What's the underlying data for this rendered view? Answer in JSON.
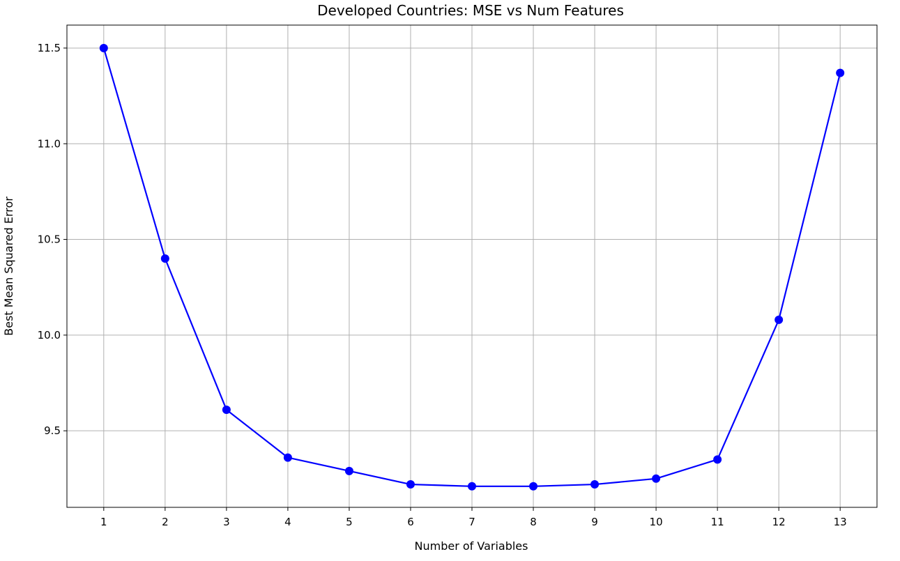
{
  "chart_data": {
    "type": "line",
    "title": "Developed Countries: MSE vs Num Features",
    "xlabel": "Number of Variables",
    "ylabel": "Best Mean Squared Error",
    "x": [
      1,
      2,
      3,
      4,
      5,
      6,
      7,
      8,
      9,
      10,
      11,
      12,
      13
    ],
    "series": [
      {
        "values": [
          11.5,
          10.4,
          9.61,
          9.36,
          9.29,
          9.22,
          9.21,
          9.21,
          9.22,
          9.25,
          9.35,
          10.08,
          11.37
        ],
        "color": "#0000ff",
        "marker": "circle"
      }
    ],
    "xticks": [
      "1",
      "2",
      "3",
      "4",
      "5",
      "6",
      "7",
      "8",
      "9",
      "10",
      "11",
      "12",
      "13"
    ],
    "yticks": [
      9.5,
      10.0,
      10.5,
      11.0,
      11.5
    ],
    "ytick_labels": [
      "9.5",
      "10.0",
      "10.5",
      "11.0",
      "11.5"
    ],
    "xlim": [
      0.4,
      13.6
    ],
    "ylim": [
      9.1,
      11.62
    ],
    "grid": true,
    "grid_color": "#b0b0b0"
  }
}
